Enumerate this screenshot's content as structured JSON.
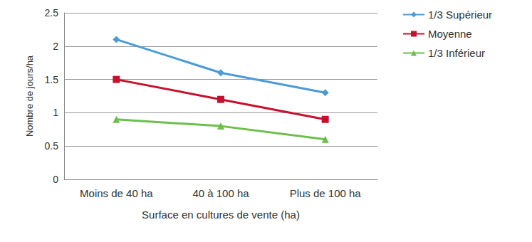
{
  "chart_data": {
    "type": "line",
    "x_label": "Surface en cultures de vente (ha)",
    "y_label": "Nombre de jours/ha",
    "categories": [
      "Moins de 40 ha",
      "40 à 100 ha",
      "Plus de 100 ha"
    ],
    "series": [
      {
        "name": "1/3 Supérieur",
        "color": "#4a9bd6",
        "marker": "diamond",
        "values": [
          2.1,
          1.6,
          1.3
        ]
      },
      {
        "name": "Moyenne",
        "color": "#c8102e",
        "marker": "square",
        "values": [
          1.5,
          1.2,
          0.9
        ]
      },
      {
        "name": "1/3 Inférieur",
        "color": "#6cbf4a",
        "marker": "triangle",
        "values": [
          0.9,
          0.8,
          0.6
        ]
      }
    ],
    "ylim": [
      0,
      2.5
    ],
    "yticks": [
      0,
      0.5,
      1,
      1.5,
      2,
      2.5
    ],
    "grid": true,
    "legend": "right"
  }
}
